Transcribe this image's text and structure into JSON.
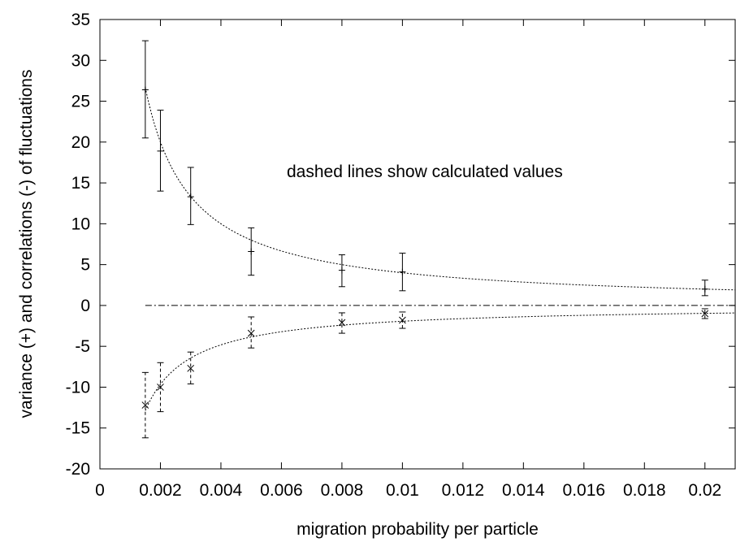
{
  "chart_data": {
    "type": "scatter",
    "title": "",
    "xlabel": "migration probability per particle",
    "ylabel": "variance (+) and correlations (-) of fluctuations",
    "xlim": [
      0,
      0.021
    ],
    "ylim": [
      -20,
      35
    ],
    "grid": false,
    "x_ticks": [
      "0",
      "0.002",
      "0.004",
      "0.006",
      "0.008",
      "0.01",
      "0.012",
      "0.014",
      "0.016",
      "0.018",
      "0.02"
    ],
    "y_ticks": [
      "35",
      "30",
      "25",
      "20",
      "15",
      "10",
      "5",
      "0",
      "-5",
      "-10",
      "-15",
      "-20"
    ],
    "annotation": "dashed lines show calculated values",
    "series": [
      {
        "marker": "plus",
        "errorbar_style": "solid",
        "points": [
          {
            "x": 0.0015,
            "y": 26.4,
            "ylow": 20.5,
            "yhigh": 32.4
          },
          {
            "x": 0.002,
            "y": 18.9,
            "ylow": 14.0,
            "yhigh": 23.9
          },
          {
            "x": 0.003,
            "y": 13.3,
            "ylow": 9.9,
            "yhigh": 16.9
          },
          {
            "x": 0.005,
            "y": 6.6,
            "ylow": 3.7,
            "yhigh": 9.5
          },
          {
            "x": 0.008,
            "y": 4.3,
            "ylow": 2.3,
            "yhigh": 6.2
          },
          {
            "x": 0.01,
            "y": 4.1,
            "ylow": 1.8,
            "yhigh": 6.4
          },
          {
            "x": 0.02,
            "y": 2.0,
            "ylow": 1.2,
            "yhigh": 3.1
          }
        ]
      },
      {
        "marker": "cross",
        "errorbar_style": "dashed",
        "points": [
          {
            "x": 0.0015,
            "y": -12.2,
            "ylow": -16.2,
            "yhigh": -8.2
          },
          {
            "x": 0.002,
            "y": -10.0,
            "ylow": -13.0,
            "yhigh": -7.0
          },
          {
            "x": 0.003,
            "y": -7.7,
            "ylow": -9.6,
            "yhigh": -5.7
          },
          {
            "x": 0.005,
            "y": -3.4,
            "ylow": -5.2,
            "yhigh": -1.4
          },
          {
            "x": 0.008,
            "y": -2.1,
            "ylow": -3.4,
            "yhigh": -0.9
          },
          {
            "x": 0.01,
            "y": -1.8,
            "ylow": -2.8,
            "yhigh": -0.8
          },
          {
            "x": 0.02,
            "y": -1.0,
            "ylow": -1.6,
            "yhigh": -0.4
          }
        ]
      }
    ],
    "curves": [
      {
        "style": "dotted",
        "formula": "0.04/x",
        "x_range": [
          0.0015,
          0.021
        ]
      },
      {
        "style": "dotted",
        "formula": "-0.0193/x",
        "x_range": [
          0.0015,
          0.021
        ]
      },
      {
        "style": "dash-dot",
        "formula": "0",
        "x_range": [
          0.0015,
          0.021
        ]
      }
    ]
  }
}
